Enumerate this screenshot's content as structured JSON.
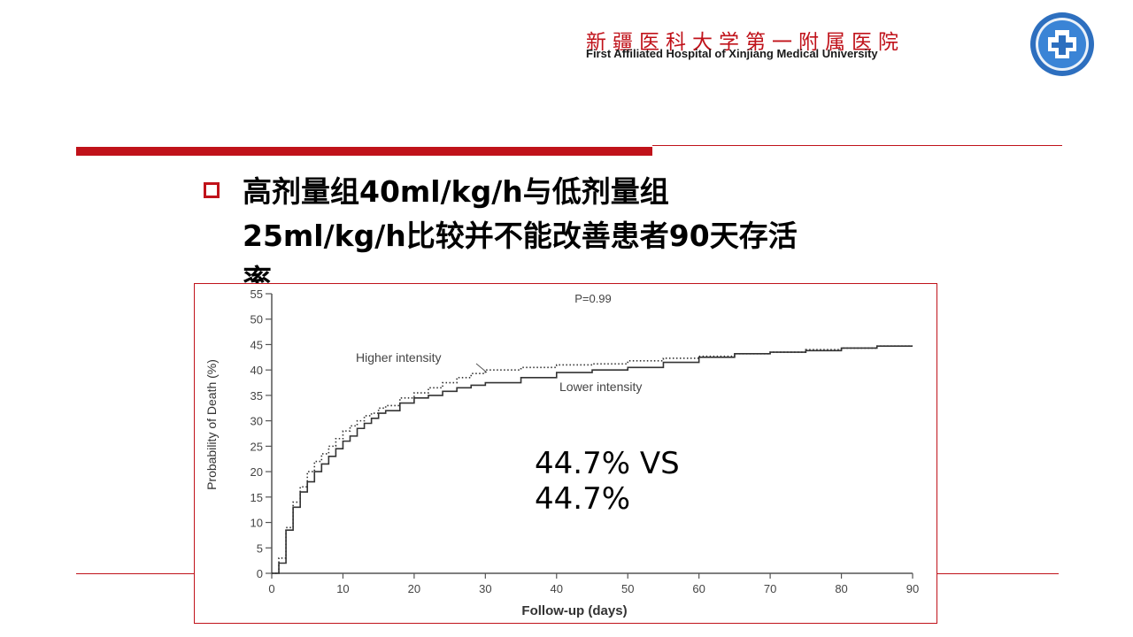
{
  "header": {
    "hospital_cn": "新疆医科大学第一附属医院",
    "hospital_en": "First Affiliated Hospital of Xinjiang Medical University",
    "logo_icon": "hospital-emblem-icon",
    "accent": "#c0121a"
  },
  "slide": {
    "headline_line1": "高剂量组40ml/kg/h与低剂量组",
    "headline_line2": "25ml/kg/h比较并不能改善患者90天存活",
    "headline_line3": "率",
    "annotation_line1": "44.7% VS",
    "annotation_line2": "44.7%"
  },
  "chart_data": {
    "type": "line",
    "title": "P=0.99",
    "xlabel": "Follow-up (days)",
    "ylabel": "Probability of Death (%)",
    "xlim": [
      0,
      90
    ],
    "ylim": [
      0,
      55
    ],
    "xticks": [
      0,
      10,
      20,
      30,
      40,
      50,
      60,
      70,
      80,
      90
    ],
    "yticks": [
      0,
      5,
      10,
      15,
      20,
      25,
      30,
      35,
      40,
      45,
      50,
      55
    ],
    "series": [
      {
        "name": "Higher intensity",
        "style": "dotted",
        "x": [
          0,
          1,
          2,
          3,
          4,
          5,
          6,
          7,
          8,
          9,
          10,
          11,
          12,
          13,
          14,
          15,
          16,
          18,
          20,
          22,
          24,
          26,
          28,
          30,
          35,
          40,
          45,
          50,
          55,
          60,
          65,
          70,
          75,
          80,
          85,
          90
        ],
        "values": [
          0,
          3,
          9,
          14,
          17,
          20,
          22,
          23.5,
          25,
          26.5,
          28,
          29,
          30,
          31,
          31.5,
          32.5,
          33,
          34.5,
          35.5,
          36.5,
          37.5,
          38.5,
          39.3,
          40,
          40.5,
          41,
          41.2,
          41.8,
          42.3,
          42.7,
          43.2,
          43.5,
          44,
          44.3,
          44.7,
          44.7
        ]
      },
      {
        "name": "Lower intensity",
        "style": "solid",
        "x": [
          0,
          1,
          2,
          3,
          4,
          5,
          6,
          7,
          8,
          9,
          10,
          11,
          12,
          13,
          14,
          15,
          16,
          18,
          20,
          22,
          24,
          26,
          28,
          30,
          35,
          40,
          45,
          50,
          55,
          60,
          65,
          70,
          75,
          80,
          85,
          90
        ],
        "values": [
          0,
          2,
          8.5,
          13,
          16,
          18,
          20,
          21.5,
          23,
          24.5,
          26,
          27,
          28.5,
          29.5,
          30.5,
          31.5,
          32,
          33.5,
          34.5,
          35,
          35.8,
          36.5,
          37,
          37.5,
          38.5,
          39.5,
          40,
          40.5,
          41.5,
          42.5,
          43.2,
          43.5,
          43.8,
          44.3,
          44.7,
          44.7
        ]
      }
    ]
  }
}
